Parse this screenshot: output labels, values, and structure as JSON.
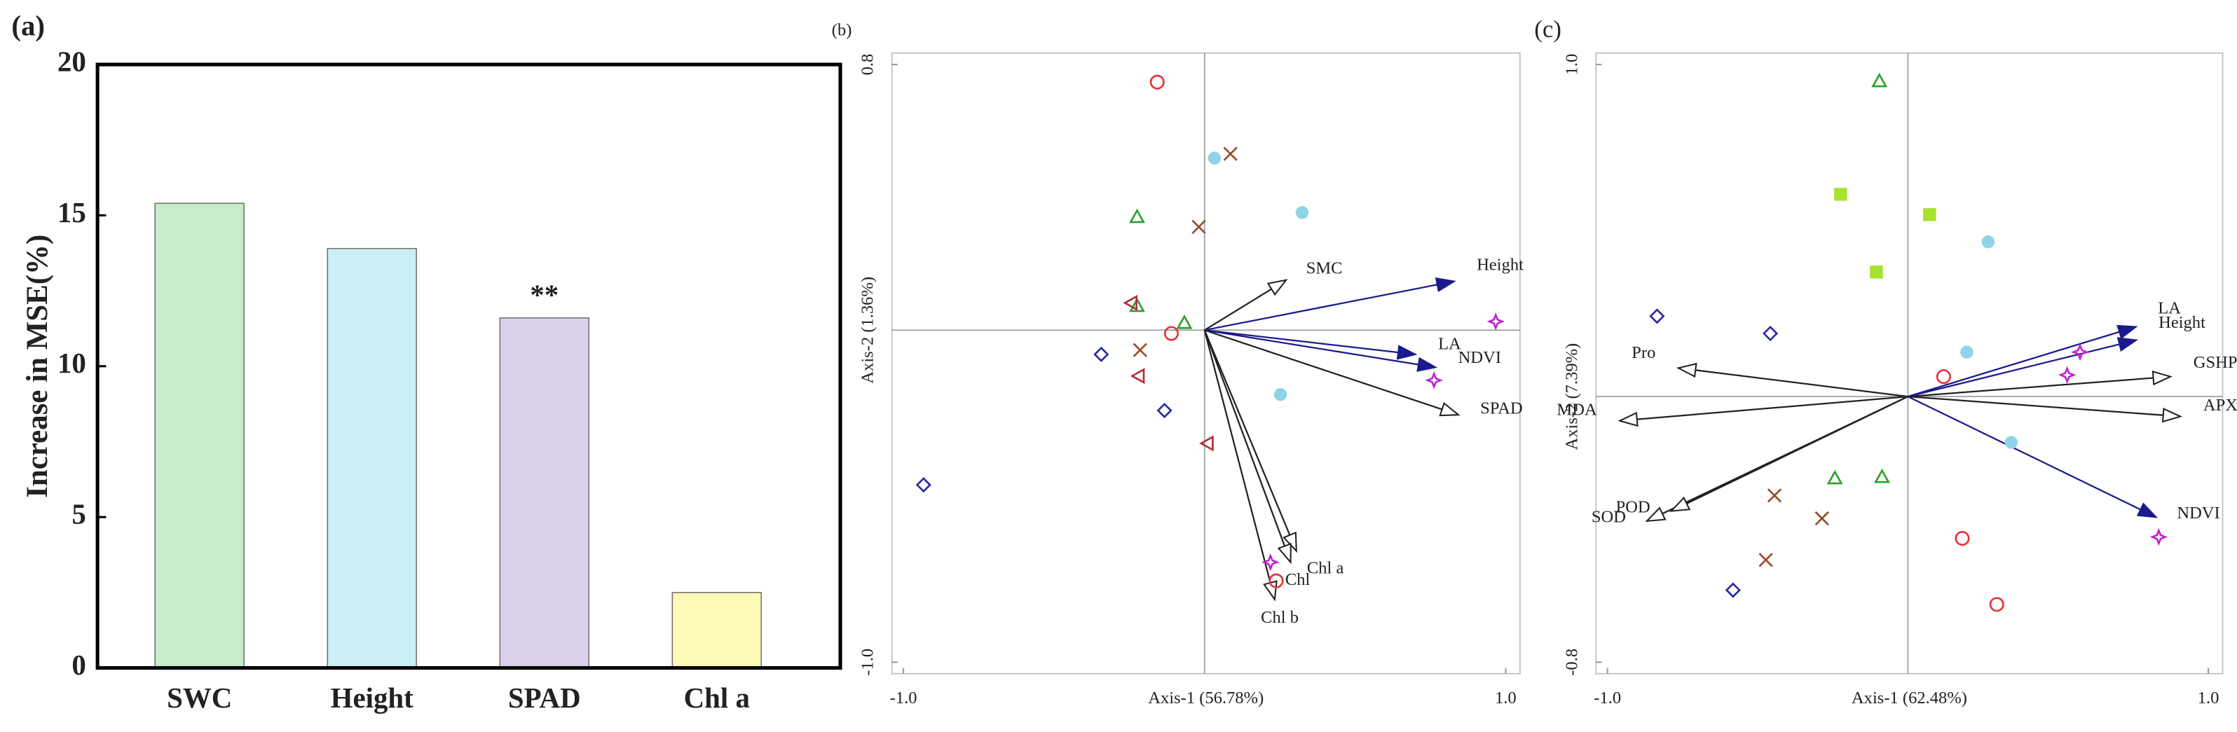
{
  "chart_data": [
    {
      "type": "bar",
      "panel": "(a)",
      "ylabel": "Increase in MSE(%)",
      "categories": [
        "SWC",
        "Height",
        "SPAD",
        "Chl a"
      ],
      "values": [
        15.4,
        13.9,
        11.6,
        2.5
      ],
      "colors": [
        "#c8ecca",
        "#caf0f5",
        "#dad1ec",
        "#fdf9b6"
      ],
      "ylim": [
        0,
        20
      ],
      "yticks": [
        0,
        5,
        10,
        15,
        20
      ],
      "annotation": {
        "text": "**",
        "x": "SPAD"
      }
    },
    {
      "type": "biplot",
      "panel": "(b)",
      "xlabel": "Axis-1 (56.78%)",
      "ylabel": "Axis-2 (1.36%)",
      "xlim": [
        -1,
        1
      ],
      "ylim": [
        -1,
        0.8
      ],
      "xticks": [
        {
          "value": -1,
          "label": "-1.0"
        },
        {
          "value": 1,
          "label": "1.0"
        }
      ],
      "yticks": [
        {
          "value": 0.8,
          "label": "0.8"
        },
        {
          "value": -1,
          "label": "-1.0"
        }
      ],
      "series": [
        {
          "marker": "circle",
          "color": "#e8323c",
          "x": [
            -0.157,
            -0.11,
            0.238
          ],
          "y": [
            0.747,
            -0.01,
            -0.755
          ]
        },
        {
          "marker": "dot",
          "color": "#8fd3e6",
          "x": [
            0.033,
            0.324,
            0.252
          ],
          "y": [
            0.518,
            0.354,
            -0.194
          ]
        },
        {
          "marker": "cross",
          "color": "#9a4a2a",
          "x": [
            0.086,
            -0.019,
            -0.214
          ],
          "y": [
            0.531,
            0.311,
            -0.06
          ]
        },
        {
          "marker": "triangle",
          "color": "#2ca02c",
          "x": [
            -0.224,
            -0.224,
            -0.067
          ],
          "y": [
            0.341,
            0.073,
            0.022
          ]
        },
        {
          "marker": "ltriangle",
          "color": "#b0303c",
          "x": [
            -0.243,
            -0.219,
            0.01
          ],
          "y": [
            0.082,
            -0.138,
            -0.341
          ]
        },
        {
          "marker": "diamond",
          "color": "#2a2aa0",
          "x": [
            -0.343,
            -0.133,
            -0.933
          ],
          "y": [
            -0.073,
            -0.242,
            -0.466
          ]
        },
        {
          "marker": "star",
          "color": "#c020d0",
          "x": [
            0.967,
            0.762,
            0.219
          ],
          "y": [
            0.026,
            -0.151,
            -0.699
          ]
        }
      ],
      "arrows": [
        {
          "label": "SMC",
          "x": 0.271,
          "y": 0.151,
          "color": "#222222"
        },
        {
          "label": "Height",
          "x": 0.829,
          "y": 0.147,
          "color": "#1a1a8c"
        },
        {
          "label": "LA",
          "x": 0.7,
          "y": -0.073,
          "color": "#1a1a8c"
        },
        {
          "label": "NDVI",
          "x": 0.767,
          "y": -0.112,
          "color": "#1a1a8c"
        },
        {
          "label": "SPAD",
          "x": 0.843,
          "y": -0.255,
          "color": "#222222"
        },
        {
          "label": "Chl a",
          "x": 0.305,
          "y": -0.665,
          "color": "#222222"
        },
        {
          "label": "Chl",
          "x": 0.286,
          "y": -0.699,
          "color": "#222222"
        },
        {
          "label": "Chl b",
          "x": 0.233,
          "y": -0.811,
          "color": "#222222"
        }
      ]
    },
    {
      "type": "biplot",
      "panel": "(c)",
      "xlabel": "Axis-1 (62.48%)",
      "ylabel": "Axis-2 (7.39%)",
      "xlim": [
        -1,
        1
      ],
      "ylim": [
        -0.8,
        1
      ],
      "xticks": [
        {
          "value": -1,
          "label": "-1.0"
        },
        {
          "value": 1,
          "label": "1.0"
        }
      ],
      "yticks": [
        {
          "value": 1,
          "label": "1.0"
        },
        {
          "value": -0.8,
          "label": "-0.8"
        }
      ],
      "series": [
        {
          "marker": "triangle",
          "color": "#2ca02c",
          "x": [
            -0.095,
            -0.243,
            -0.086
          ],
          "y": [
            0.95,
            -0.246,
            -0.242
          ]
        },
        {
          "marker": "square",
          "color": "#a6e22e",
          "x": [
            -0.224,
            0.072,
            -0.105
          ],
          "y": [
            0.609,
            0.548,
            0.375
          ]
        },
        {
          "marker": "dot",
          "color": "#8fd3e6",
          "x": [
            0.267,
            0.196,
            0.344
          ],
          "y": [
            0.466,
            0.134,
            -0.138
          ]
        },
        {
          "marker": "diamond",
          "color": "#2a2aa0",
          "x": [
            -0.835,
            -0.458,
            -0.582
          ],
          "y": [
            0.242,
            0.19,
            -0.583
          ]
        },
        {
          "marker": "circle",
          "color": "#e8323c",
          "x": [
            0.119,
            0.181,
            0.296
          ],
          "y": [
            0.06,
            -0.427,
            -0.626
          ]
        },
        {
          "marker": "cross",
          "color": "#9a4a2a",
          "x": [
            -0.444,
            -0.286,
            -0.473
          ],
          "y": [
            -0.298,
            -0.367,
            -0.492
          ]
        },
        {
          "marker": "star",
          "color": "#c020d0",
          "x": [
            0.573,
            0.53,
            0.835
          ],
          "y": [
            0.134,
            0.065,
            -0.423
          ]
        }
      ],
      "arrows": [
        {
          "label": "LA",
          "x": 0.759,
          "y": 0.21,
          "color": "#1a1a8c"
        },
        {
          "label": "Height",
          "x": 0.76,
          "y": 0.17,
          "color": "#1a1a8c"
        },
        {
          "label": "GSHPX",
          "x": 0.874,
          "y": 0.06,
          "color": "#222222"
        },
        {
          "label": "APX",
          "x": 0.907,
          "y": -0.06,
          "color": "#222222"
        },
        {
          "label": "NDVI",
          "x": 0.826,
          "y": -0.363,
          "color": "#1a1a8c"
        },
        {
          "label": "Pro",
          "x": -0.764,
          "y": 0.086,
          "color": "#222222"
        },
        {
          "label": "MDA",
          "x": -0.959,
          "y": -0.073,
          "color": "#222222"
        },
        {
          "label": "SOD",
          "x": -0.869,
          "y": -0.375,
          "color": "#222222"
        },
        {
          "label": "POD",
          "x": -0.788,
          "y": -0.345,
          "color": "#222222"
        }
      ]
    }
  ]
}
